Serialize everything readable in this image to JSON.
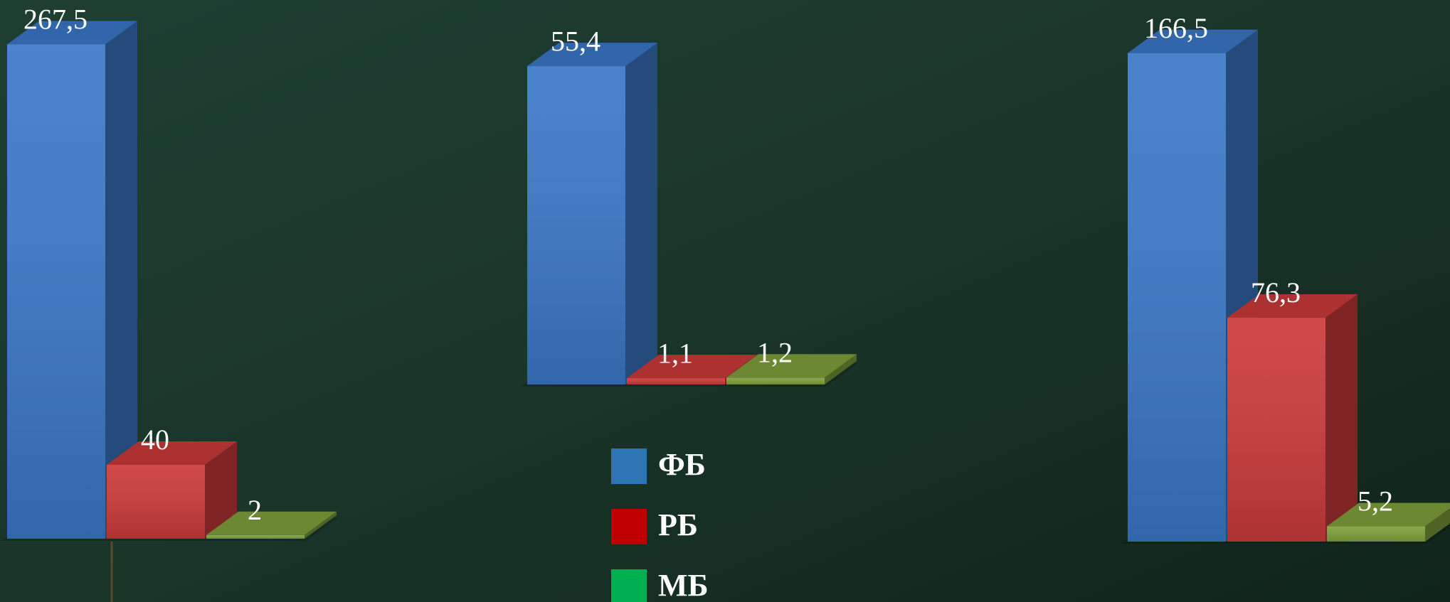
{
  "chart_data": [
    {
      "type": "bar",
      "values": [
        267.5,
        40,
        2
      ],
      "value_labels": [
        "267,5",
        "40",
        "2"
      ],
      "ylim": [
        0,
        270
      ]
    },
    {
      "type": "bar",
      "values": [
        55.4,
        1.1,
        1.2
      ],
      "value_labels": [
        "55,4",
        "1,1",
        "1,2"
      ],
      "ylim": [
        0,
        60
      ]
    },
    {
      "type": "bar",
      "values": [
        166.5,
        76.3,
        5.2
      ],
      "value_labels": [
        "166,5",
        "76,3",
        "5,2"
      ],
      "ylim": [
        0,
        180
      ]
    }
  ],
  "legend": {
    "series": [
      {
        "name": "ФБ",
        "color": "#3b78c8",
        "legend_color": "#2e75b6"
      },
      {
        "name": "РБ",
        "color": "#cc3a3a",
        "legend_color": "#c00000"
      },
      {
        "name": "МБ",
        "color": "#7fa03c",
        "legend_color": "#00b050"
      }
    ]
  }
}
